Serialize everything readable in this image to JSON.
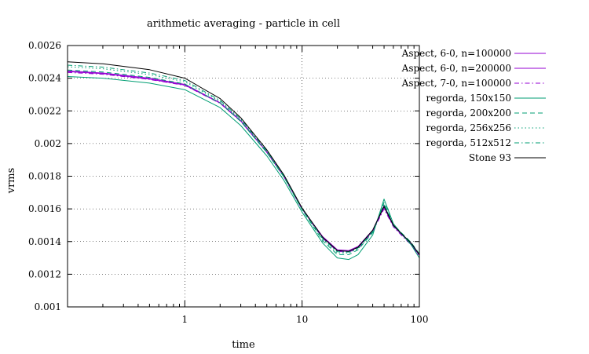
{
  "chart_data": {
    "type": "line",
    "title": "arithmetic averaging - particle in cell",
    "xlabel": "time",
    "ylabel": "vrms",
    "xscale": "log",
    "xlim": [
      0.1,
      100
    ],
    "ylim": [
      0.001,
      0.0026
    ],
    "grid": true,
    "legend_position": "outside-right",
    "x_ticks": [
      {
        "value": 1,
        "label": "1"
      },
      {
        "value": 10,
        "label": "10"
      },
      {
        "value": 100,
        "label": "100"
      }
    ],
    "y_ticks": [
      {
        "value": 0.001,
        "label": "0.001"
      },
      {
        "value": 0.0012,
        "label": "0.0012"
      },
      {
        "value": 0.0014,
        "label": "0.0014"
      },
      {
        "value": 0.0016,
        "label": "0.0016"
      },
      {
        "value": 0.0018,
        "label": "0.0018"
      },
      {
        "value": 0.002,
        "label": "0.002"
      },
      {
        "value": 0.0022,
        "label": "0.0022"
      },
      {
        "value": 0.0024,
        "label": "0.0024"
      },
      {
        "value": 0.0026,
        "label": "0.0026"
      }
    ],
    "x": [
      0.1,
      0.2,
      0.5,
      1,
      2,
      3,
      5,
      7,
      10,
      15,
      20,
      25,
      30,
      40,
      50,
      60,
      70,
      85,
      100
    ],
    "series": [
      {
        "name": "Aspect, 6-0, n=100000",
        "color": "#9400d3",
        "dash": "solid",
        "values": [
          0.002445,
          0.002432,
          0.0024,
          0.002362,
          0.00225,
          0.00214,
          0.00195,
          0.0018,
          0.0016,
          0.00143,
          0.00135,
          0.001345,
          0.00137,
          0.00147,
          0.00162,
          0.0015,
          0.00145,
          0.00139,
          0.00132
        ]
      },
      {
        "name": "Aspect, 6-0, n=200000",
        "color": "#9400d3",
        "dash": "solid",
        "values": [
          0.00244,
          0.002428,
          0.002395,
          0.002358,
          0.002248,
          0.002138,
          0.001948,
          0.001798,
          0.001598,
          0.001425,
          0.001345,
          0.00134,
          0.001365,
          0.001465,
          0.00161,
          0.001495,
          0.001445,
          0.001385,
          0.001315
        ]
      },
      {
        "name": "Aspect, 7-0, n=100000",
        "color": "#9400d3",
        "dash": "dashdot",
        "values": [
          0.002435,
          0.002424,
          0.002392,
          0.002356,
          0.002246,
          0.002136,
          0.001946,
          0.001796,
          0.001596,
          0.00142,
          0.00134,
          0.001335,
          0.00136,
          0.00146,
          0.0016,
          0.00149,
          0.00144,
          0.00138,
          0.00131
        ]
      },
      {
        "name": "regorda, 150x150",
        "color": "#009e73",
        "dash": "solid",
        "values": [
          0.00241,
          0.0024,
          0.00237,
          0.00233,
          0.00222,
          0.00211,
          0.001925,
          0.001775,
          0.00158,
          0.00139,
          0.0013,
          0.00129,
          0.00132,
          0.00144,
          0.00166,
          0.00151,
          0.00145,
          0.00138,
          0.0013
        ]
      },
      {
        "name": "regorda, 200x200",
        "color": "#009e73",
        "dash": "dash",
        "values": [
          0.00245,
          0.002438,
          0.002405,
          0.002365,
          0.002248,
          0.002135,
          0.001945,
          0.001795,
          0.001595,
          0.001405,
          0.00132,
          0.00132,
          0.00135,
          0.001455,
          0.00164,
          0.001505,
          0.001455,
          0.001395,
          0.001325
        ]
      },
      {
        "name": "regorda, 256x256",
        "color": "#009e73",
        "dash": "dot",
        "values": [
          0.00247,
          0.002458,
          0.002422,
          0.002378,
          0.002258,
          0.002145,
          0.001952,
          0.0018,
          0.0016,
          0.001412,
          0.00133,
          0.00133,
          0.001355,
          0.00146,
          0.00163,
          0.0015,
          0.00145,
          0.00139,
          0.001322
        ]
      },
      {
        "name": "regorda, 512x512",
        "color": "#009e73",
        "dash": "dashdot",
        "values": [
          0.00248,
          0.002468,
          0.002432,
          0.002386,
          0.002264,
          0.00215,
          0.001956,
          0.001804,
          0.001603,
          0.001418,
          0.001338,
          0.001336,
          0.00136,
          0.001462,
          0.001625,
          0.001497,
          0.001448,
          0.001388,
          0.00132
        ]
      },
      {
        "name": "Stone 93",
        "color": "#000000",
        "dash": "solid",
        "values": [
          0.0025,
          0.002488,
          0.002452,
          0.0024,
          0.002275,
          0.002158,
          0.001962,
          0.001808,
          0.001605,
          0.001425,
          0.001345,
          0.00134,
          0.001365,
          0.00147,
          0.001615,
          0.0015,
          0.00145,
          0.00139,
          0.00132
        ]
      }
    ]
  }
}
